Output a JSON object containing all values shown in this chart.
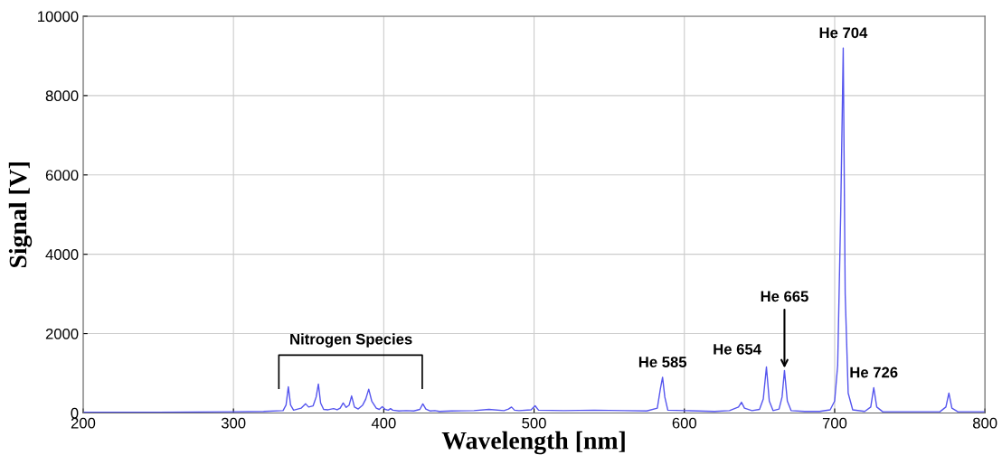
{
  "chart_data": {
    "type": "line",
    "xlabel": "Wavelength [nm]",
    "ylabel": "Signal [V]",
    "xlim": [
      200,
      800
    ],
    "ylim": [
      0,
      10000
    ],
    "xticks": [
      200,
      300,
      400,
      500,
      600,
      700,
      800
    ],
    "yticks": [
      0,
      2000,
      4000,
      6000,
      8000,
      10000
    ],
    "grid": true,
    "series": [
      {
        "color": "#5555ee",
        "x": [
          200,
          250,
          300,
          320,
          333,
          335,
          336.5,
          338,
          340,
          345,
          348,
          350,
          353,
          355,
          356.5,
          358,
          360,
          363,
          366.6,
          369,
          371,
          373,
          375,
          377,
          378.6,
          380.5,
          383,
          386,
          388,
          390,
          392,
          395,
          397,
          399,
          401,
          403,
          404.5,
          406,
          410,
          415,
          420,
          424,
          426,
          428,
          431,
          434,
          437,
          445,
          460,
          470,
          480,
          483,
          485,
          487,
          490,
          498,
          500.7,
          503,
          520,
          540,
          560,
          575,
          582,
          584,
          585.5,
          587,
          589,
          600,
          620,
          630,
          636,
          638,
          640,
          645,
          650,
          652.5,
          654.6,
          656.5,
          659,
          663,
          665,
          666.6,
          668.5,
          671,
          680,
          690,
          697,
          700,
          702,
          704,
          705.7,
          707,
          709,
          712,
          720,
          724,
          726,
          728,
          732,
          750,
          770,
          774,
          776,
          778,
          782,
          800
        ],
        "values": [
          20,
          20,
          30,
          40,
          60,
          200,
          660,
          200,
          70,
          120,
          230,
          150,
          180,
          400,
          730,
          250,
          90,
          80,
          110,
          80,
          120,
          250,
          140,
          200,
          430,
          150,
          100,
          200,
          350,
          600,
          300,
          120,
          90,
          160,
          90,
          70,
          110,
          70,
          50,
          60,
          50,
          90,
          230,
          100,
          50,
          60,
          40,
          50,
          60,
          90,
          60,
          100,
          150,
          70,
          60,
          80,
          180,
          70,
          60,
          70,
          60,
          50,
          120,
          600,
          900,
          400,
          70,
          60,
          40,
          60,
          150,
          270,
          120,
          60,
          90,
          350,
          1160,
          300,
          60,
          100,
          400,
          1070,
          300,
          60,
          40,
          40,
          80,
          300,
          1200,
          5000,
          9200,
          3000,
          500,
          80,
          40,
          150,
          640,
          150,
          30,
          30,
          30,
          150,
          500,
          120,
          30,
          30
        ]
      }
    ],
    "annotations": [
      "Nitrogen Species",
      {
        "text": "He 585",
        "x": 585.5,
        "y": 900
      },
      {
        "text": "He 654",
        "x": 654.6,
        "y": 1160
      },
      {
        "text": "He 665",
        "x": 666.6,
        "y": 1070
      },
      {
        "text": "He 704",
        "x": 705.7,
        "y": 9200
      },
      {
        "text": "He 726",
        "x": 726,
        "y": 640
      }
    ]
  }
}
